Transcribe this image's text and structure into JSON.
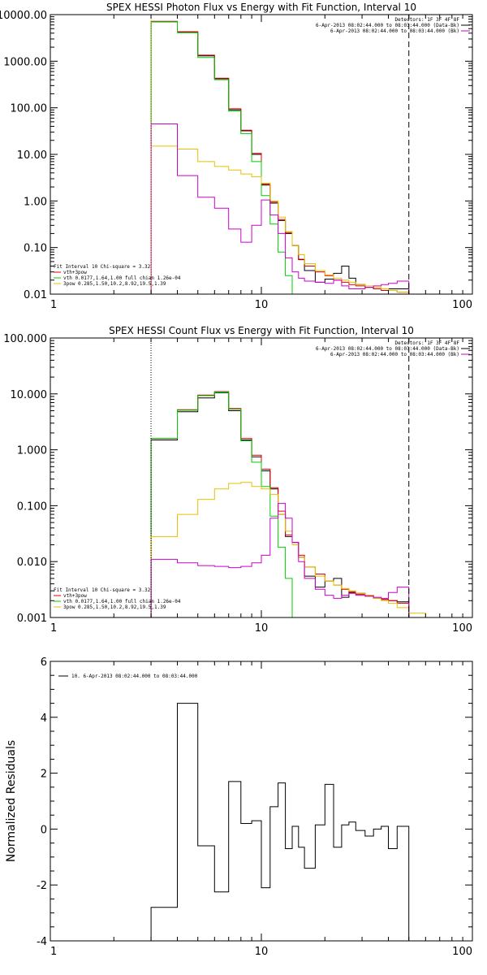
{
  "chart_data": [
    {
      "type": "line",
      "title": "SPEX HESSI Photon Flux vs Energy with Fit Function, Interval 10",
      "xlabel": "",
      "ylabel": "",
      "xscale": "log",
      "yscale": "log",
      "xlim": [
        1,
        100
      ],
      "ylim": [
        0.01,
        10000
      ],
      "xticks": [
        {
          "v": 1,
          "label": "1"
        },
        {
          "v": 10,
          "label": "10"
        },
        {
          "v": 100,
          "label": "100"
        }
      ],
      "yticks": [
        {
          "v": 0.01,
          "label": "0.01"
        },
        {
          "v": 0.1,
          "label": "0.10"
        },
        {
          "v": 1,
          "label": "1.00"
        },
        {
          "v": 10,
          "label": "10.00"
        },
        {
          "v": 100,
          "label": "100.00"
        },
        {
          "v": 1000,
          "label": "1000.00"
        },
        {
          "v": 10000,
          "label": "10000.00"
        }
      ],
      "vlines": [
        {
          "x": 3.0,
          "style": "dotted",
          "color": "#e8c000"
        },
        {
          "x": 50.0,
          "style": "dashed",
          "color": "#000000"
        }
      ],
      "legend_top": [
        {
          "text": "Detectors: 1F 3F 4F 8F",
          "color": ""
        },
        {
          "text": "6-Apr-2013 08:02:44.000 to 08:03:44.000 (Data-Bk)",
          "color": "#000000"
        },
        {
          "text": "6-Apr-2013 08:02:44.000 to 08:03:44.000 (Bk)",
          "color": "#cc00cc"
        }
      ],
      "legend_bottom": [
        {
          "text": "Fit Interval 10   Chi-square = 3.32",
          "color": ""
        },
        {
          "text": "vth+3pow",
          "color": "#dd0000"
        },
        {
          "text": "vth 0.0177,1.64,1.00  full chian 1.26e-04",
          "color": "#00cc00"
        },
        {
          "text": "3pow 0.285,1.50,10.2,8.92,19.5,1.39",
          "color": "#e8c000"
        }
      ],
      "bin_edges": [
        3.0,
        4.0,
        5.0,
        6.0,
        7.0,
        8.0,
        9.0,
        10.0,
        11.0,
        12.0,
        13.0,
        14.0,
        15.0,
        16.0,
        18.0,
        20.0,
        22.0,
        24.0,
        26.0,
        28.0,
        31.0,
        34.0,
        37.0,
        40.0,
        44.0,
        50.0
      ],
      "series": [
        {
          "name": "Data-Bk",
          "color": "#000000",
          "values": [
            7000,
            4200,
            1300,
            420,
            90,
            32,
            10,
            2.2,
            0.9,
            0.38,
            0.2,
            0.11,
            0.055,
            0.032,
            0.018,
            0.021,
            0.028,
            0.04,
            0.022,
            0.016,
            0.014,
            0.013,
            0.013,
            0.013,
            0.013
          ]
        },
        {
          "name": "vth+3pow",
          "color": "#dd0000",
          "values": [
            7200,
            4300,
            1350,
            430,
            95,
            33,
            10.5,
            2.3,
            0.95,
            0.4,
            0.21,
            0.11,
            0.056,
            0.04,
            0.03,
            0.025,
            0.02,
            0.018,
            0.016,
            0.015,
            0.014,
            0.013,
            0.012,
            0.012,
            0.011
          ]
        },
        {
          "name": "vth",
          "color": "#00cc00",
          "values": [
            7000,
            4100,
            1200,
            400,
            85,
            28,
            7.0,
            1.3,
            0.32,
            0.08,
            0.025,
            0.008
          ]
        },
        {
          "name": "3pow",
          "color": "#e8c000",
          "values": [
            15,
            13,
            7.0,
            5.5,
            4.6,
            3.8,
            3.3,
            2.4,
            1.0,
            0.45,
            0.22,
            0.11,
            0.07,
            0.045,
            0.032,
            0.026,
            0.022,
            0.02,
            0.018,
            0.016,
            0.015,
            0.014,
            0.013,
            0.012,
            0.011
          ]
        },
        {
          "name": "Bk",
          "color": "#cc00cc",
          "values": [
            45,
            3.5,
            1.2,
            0.7,
            0.25,
            0.13,
            0.3,
            1.05,
            0.5,
            0.2,
            0.06,
            0.03,
            0.022,
            0.019,
            0.018,
            0.017,
            0.02,
            0.015,
            0.013,
            0.013,
            0.014,
            0.015,
            0.016,
            0.017,
            0.019
          ]
        }
      ]
    },
    {
      "type": "line",
      "title": "SPEX HESSI Count Flux vs Energy with Fit Function, Interval 10",
      "xlabel": "",
      "ylabel": "",
      "xscale": "log",
      "yscale": "log",
      "xlim": [
        1,
        100
      ],
      "ylim": [
        0.001,
        100
      ],
      "xticks": [
        {
          "v": 1,
          "label": "1"
        },
        {
          "v": 10,
          "label": "10"
        },
        {
          "v": 100,
          "label": "100"
        }
      ],
      "yticks": [
        {
          "v": 0.001,
          "label": "0.001"
        },
        {
          "v": 0.01,
          "label": "0.010"
        },
        {
          "v": 0.1,
          "label": "0.100"
        },
        {
          "v": 1,
          "label": "1.000"
        },
        {
          "v": 10,
          "label": "10.000"
        },
        {
          "v": 100,
          "label": "100.000"
        }
      ],
      "vlines": [
        {
          "x": 3.0,
          "style": "dotted",
          "color": "#000000"
        },
        {
          "x": 50.0,
          "style": "dashed",
          "color": "#000000"
        }
      ],
      "legend_top": [
        {
          "text": "Detectors: 1F 3F 4F 8F",
          "color": ""
        },
        {
          "text": "6-Apr-2013 08:02:44.000 to 08:03:44.000 (Data-Bk)",
          "color": "#000000"
        },
        {
          "text": "6-Apr-2013 08:02:44.000 to 08:03:44.000 (Bk)",
          "color": "#cc00cc"
        }
      ],
      "legend_bottom": [
        {
          "text": "Fit Interval 10   Chi-square = 3.32",
          "color": ""
        },
        {
          "text": "vth+3pow",
          "color": "#dd0000"
        },
        {
          "text": "vth 0.0177,1.64,1.00  full chian 1.26e-04",
          "color": "#00cc00"
        },
        {
          "text": "3pow 0.285,1.50,10.2,8.92,19.5,1.39",
          "color": "#e8c000"
        }
      ],
      "bin_edges": [
        3.0,
        4.0,
        5.0,
        6.0,
        7.0,
        8.0,
        9.0,
        10.0,
        11.0,
        12.0,
        13.0,
        14.0,
        15.0,
        16.0,
        18.0,
        20.0,
        22.0,
        24.0,
        26.0,
        28.0,
        31.0,
        34.0,
        37.0,
        40.0,
        44.0,
        50.0,
        60.0,
        70.0,
        85.0,
        100.0
      ],
      "series": [
        {
          "name": "Data-Bk",
          "color": "#000000",
          "values": [
            1.5,
            4.8,
            8.5,
            10.5,
            5.0,
            1.5,
            0.75,
            0.42,
            0.2,
            0.07,
            0.028,
            0.022,
            0.012,
            0.0055,
            0.0035,
            0.0045,
            0.005,
            0.0023,
            0.0028,
            0.0027,
            0.0025,
            0.0022,
            0.0021,
            0.002,
            0.0019
          ]
        },
        {
          "name": "vth+3pow",
          "color": "#dd0000",
          "values": [
            1.6,
            5.2,
            9.5,
            11.0,
            5.5,
            1.6,
            0.8,
            0.45,
            0.21,
            0.08,
            0.03,
            0.022,
            0.013,
            0.008,
            0.006,
            0.0045,
            0.0038,
            0.0032,
            0.0029,
            0.0026,
            0.0024,
            0.0022,
            0.0021,
            0.002,
            0.0018
          ]
        },
        {
          "name": "vth",
          "color": "#00cc00",
          "values": [
            1.6,
            5.1,
            9.3,
            10.8,
            5.3,
            1.45,
            0.6,
            0.22,
            0.065,
            0.018,
            0.005,
            0.001
          ]
        },
        {
          "name": "3pow",
          "color": "#e8c000",
          "values": [
            0.028,
            0.07,
            0.13,
            0.2,
            0.25,
            0.26,
            0.22,
            0.2,
            0.16,
            0.07,
            0.035,
            0.02,
            0.012,
            0.008,
            0.0055,
            0.0045,
            0.0038,
            0.0033,
            0.003,
            0.0027,
            0.0025,
            0.0022,
            0.002,
            0.0018,
            0.0015,
            0.0012,
            0.001,
            0.001,
            0.001
          ]
        },
        {
          "name": "Bk",
          "color": "#cc00cc",
          "values": [
            0.011,
            0.0095,
            0.0085,
            0.0082,
            0.0078,
            0.0082,
            0.0095,
            0.013,
            0.06,
            0.11,
            0.06,
            0.022,
            0.01,
            0.005,
            0.0032,
            0.0025,
            0.0022,
            0.0025,
            0.0027,
            0.0025,
            0.0024,
            0.0023,
            0.0022,
            0.0028,
            0.0035
          ]
        }
      ]
    },
    {
      "type": "line",
      "title": "",
      "xlabel": "",
      "ylabel": "Normalized Residuals",
      "xscale": "log",
      "yscale": "linear",
      "xlim": [
        1,
        100
      ],
      "ylim": [
        -4,
        6
      ],
      "xticks": [
        {
          "v": 1,
          "label": "1"
        },
        {
          "v": 10,
          "label": "10"
        },
        {
          "v": 100,
          "label": "100"
        }
      ],
      "yticks": [
        {
          "v": -4,
          "label": "-4"
        },
        {
          "v": -2,
          "label": "-2"
        },
        {
          "v": 0,
          "label": "0"
        },
        {
          "v": 2,
          "label": "2"
        },
        {
          "v": 4,
          "label": "4"
        },
        {
          "v": 6,
          "label": "6"
        }
      ],
      "legend_top": [
        {
          "text": "10.  6-Apr-2013 08:02:44.000 to 08:03:44.000",
          "color": "#000000"
        }
      ],
      "bin_edges": [
        3.0,
        4.0,
        5.0,
        6.0,
        7.0,
        8.0,
        9.0,
        10.0,
        11.0,
        12.0,
        13.0,
        14.0,
        15.0,
        16.0,
        18.0,
        20.0,
        22.0,
        24.0,
        26.0,
        28.0,
        31.0,
        34.0,
        37.0,
        40.0,
        44.0,
        50.0
      ],
      "series": [
        {
          "name": "10.",
          "color": "#000000",
          "values": [
            -2.8,
            4.5,
            -0.6,
            -2.25,
            1.7,
            0.2,
            0.3,
            -2.1,
            0.8,
            1.65,
            -0.7,
            0.1,
            -0.65,
            -1.4,
            0.15,
            1.6,
            -0.65,
            0.15,
            0.25,
            -0.05,
            -0.25,
            0.0,
            0.1,
            -0.7,
            0.1
          ]
        }
      ]
    }
  ]
}
